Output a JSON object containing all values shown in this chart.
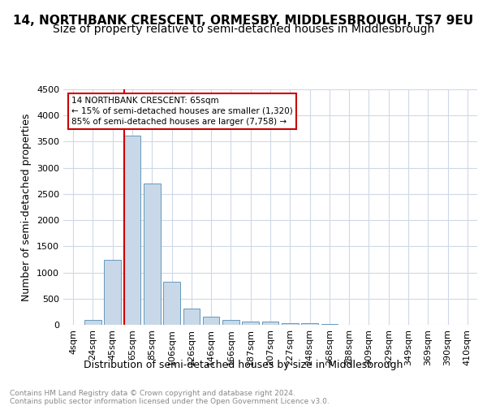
{
  "title": "14, NORTHBANK CRESCENT, ORMESBY, MIDDLESBROUGH, TS7 9EU",
  "subtitle": "Size of property relative to semi-detached houses in Middlesbrough",
  "xlabel": "Distribution of semi-detached houses by size in Middlesbrough",
  "ylabel": "Number of semi-detached properties",
  "categories": [
    "4sqm",
    "24sqm",
    "45sqm",
    "65sqm",
    "85sqm",
    "106sqm",
    "126sqm",
    "146sqm",
    "166sqm",
    "187sqm",
    "207sqm",
    "227sqm",
    "248sqm",
    "268sqm",
    "288sqm",
    "309sqm",
    "329sqm",
    "349sqm",
    "369sqm",
    "390sqm",
    "410sqm"
  ],
  "values": [
    5,
    100,
    1240,
    3620,
    2700,
    830,
    310,
    160,
    90,
    55,
    55,
    35,
    35,
    10,
    0,
    0,
    0,
    0,
    0,
    0,
    0
  ],
  "bar_color": "#c8d8e8",
  "bar_edge_color": "#6699bb",
  "annotation_title": "14 NORTHBANK CRESCENT: 65sqm",
  "annotation_line1": "← 15% of semi-detached houses are smaller (1,320)",
  "annotation_line2": "85% of semi-detached houses are larger (7,758) →",
  "annotation_box_color": "#ffffff",
  "annotation_box_edge_color": "#cc0000",
  "vline_color": "#cc0000",
  "vline_x_index": 3,
  "ylim": [
    0,
    4500
  ],
  "yticks": [
    0,
    500,
    1000,
    1500,
    2000,
    2500,
    3000,
    3500,
    4000,
    4500
  ],
  "footer_text": "Contains HM Land Registry data © Crown copyright and database right 2024.\nContains public sector information licensed under the Open Government Licence v3.0.",
  "bg_color": "#ffffff",
  "grid_color": "#d0d8e8",
  "title_fontsize": 11,
  "subtitle_fontsize": 10,
  "axis_label_fontsize": 9,
  "tick_fontsize": 8
}
